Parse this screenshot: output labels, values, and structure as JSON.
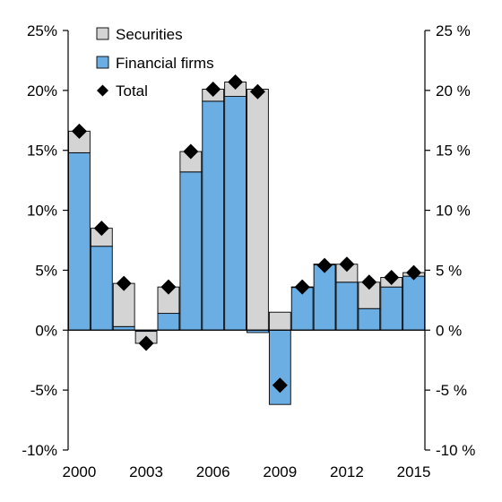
{
  "chart_data": {
    "type": "bar",
    "stacked": true,
    "categories": [
      "2000",
      "2001",
      "2002",
      "2003",
      "2004",
      "2005",
      "2006",
      "2007",
      "2008",
      "2009",
      "2010",
      "2011",
      "2012",
      "2013",
      "2014",
      "2015"
    ],
    "x_tick_labels": [
      "2000",
      "2003",
      "2006",
      "2009",
      "2012",
      "2015"
    ],
    "series": [
      {
        "name": "Financial firms",
        "type": "bar",
        "color": "#6aaee4",
        "values": [
          14.8,
          7.0,
          0.3,
          -0.1,
          1.4,
          13.2,
          19.1,
          19.5,
          -0.2,
          -6.2,
          3.6,
          5.5,
          4.0,
          1.8,
          3.6,
          4.5
        ]
      },
      {
        "name": "Securities",
        "type": "bar",
        "color": "#d4d4d4",
        "values": [
          1.8,
          1.5,
          3.6,
          -1.0,
          2.2,
          1.7,
          1.0,
          1.2,
          20.1,
          1.5,
          0.0,
          0.0,
          1.5,
          2.2,
          0.8,
          0.3
        ]
      },
      {
        "name": "Total",
        "type": "scatter",
        "marker": "diamond",
        "color": "#000000",
        "values": [
          16.6,
          8.5,
          3.9,
          -1.1,
          3.6,
          14.9,
          20.1,
          20.7,
          19.9,
          -4.6,
          3.6,
          5.4,
          5.5,
          4.0,
          4.4,
          4.8
        ]
      }
    ],
    "y_tick_labels": [
      "-10%",
      "-5%",
      "0%",
      "5%",
      "10%",
      "15%",
      "20%",
      "25%"
    ],
    "y_tick_labels_right": [
      "-10 %",
      "-5 %",
      "0 %",
      "5 %",
      "10 %",
      "15 %",
      "20 %",
      "25 %"
    ],
    "ylim": [
      -10,
      25
    ],
    "legend": {
      "placement": "top-left",
      "order": [
        "Securities",
        "Financial firms",
        "Total"
      ]
    },
    "grid": false
  }
}
